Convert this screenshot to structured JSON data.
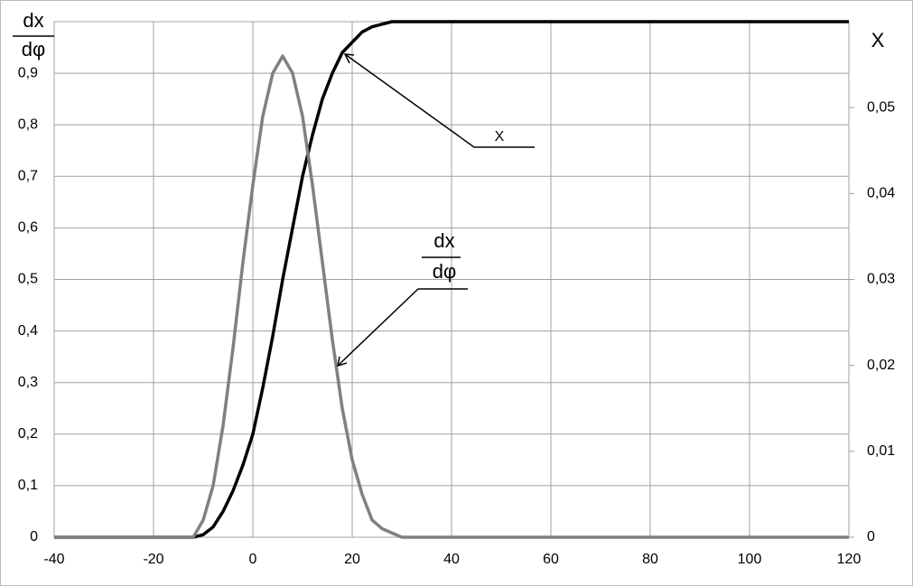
{
  "chart_data": {
    "type": "line",
    "y_label": {
      "top": "dx",
      "bottom": "dφ"
    },
    "y2_label": "X",
    "annotations": {
      "x_curve": "X",
      "rate_curve": {
        "top": "dx",
        "bottom": "dφ"
      }
    },
    "x": [
      -40,
      -20,
      -12,
      -10,
      -8,
      -6,
      -4,
      -2,
      0,
      2,
      4,
      6,
      8,
      10,
      12,
      14,
      16,
      18,
      20,
      22,
      24,
      26,
      28,
      30,
      35,
      40,
      60,
      80,
      100,
      120
    ],
    "series": [
      {
        "name": "X",
        "color": "#000000",
        "axis": "y",
        "values": [
          0,
          0,
          0,
          0.005,
          0.02,
          0.05,
          0.09,
          0.14,
          0.2,
          0.29,
          0.39,
          0.5,
          0.6,
          0.7,
          0.78,
          0.85,
          0.9,
          0.94,
          0.96,
          0.98,
          0.99,
          0.995,
          1,
          1,
          1,
          1,
          1,
          1,
          1,
          1
        ]
      },
      {
        "name": "dx/dφ",
        "color": "#808080",
        "axis": "y2",
        "values": [
          0,
          0,
          0,
          0.002,
          0.006,
          0.013,
          0.022,
          0.032,
          0.041,
          0.049,
          0.054,
          0.056,
          0.054,
          0.049,
          0.041,
          0.032,
          0.023,
          0.015,
          0.009,
          0.005,
          0.002,
          0.001,
          0.0005,
          0,
          0,
          0,
          0,
          0,
          0,
          0
        ]
      }
    ],
    "xlim": [
      -40,
      120
    ],
    "xticks": [
      -40,
      -20,
      0,
      20,
      40,
      60,
      80,
      100,
      120
    ],
    "ylim": [
      0,
      1
    ],
    "yticks": [
      0,
      {
        "value": 0.1,
        "label": "0,1"
      },
      {
        "value": 0.2,
        "label": "0,2"
      },
      {
        "value": 0.3,
        "label": "0,3"
      },
      {
        "value": 0.4,
        "label": "0,4"
      },
      {
        "value": 0.5,
        "label": "0,5"
      },
      {
        "value": 0.6,
        "label": "0,6"
      },
      {
        "value": 0.7,
        "label": "0,7"
      },
      {
        "value": 0.8,
        "label": "0,8"
      },
      {
        "value": 0.9,
        "label": "0,9"
      }
    ],
    "y2lim": [
      0,
      0.06
    ],
    "y2ticks": [
      0,
      {
        "value": 0.01,
        "label": "0,01"
      },
      {
        "value": 0.02,
        "label": "0,02"
      },
      {
        "value": 0.03,
        "label": "0,03"
      },
      {
        "value": 0.04,
        "label": "0,04"
      },
      {
        "value": 0.05,
        "label": "0,05"
      }
    ],
    "grid": true
  }
}
